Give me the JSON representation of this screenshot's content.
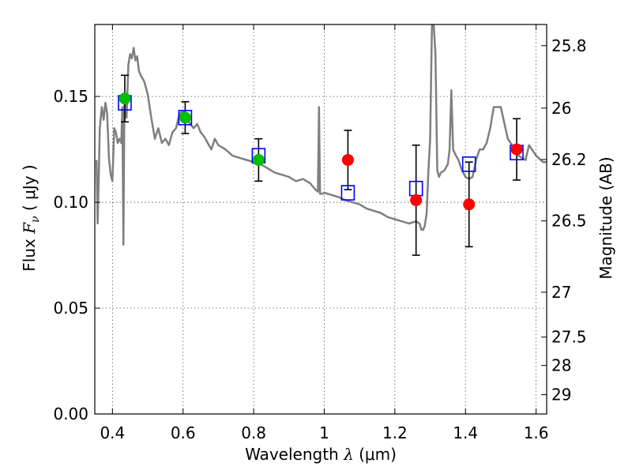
{
  "chart_data": {
    "type": "scatter",
    "xlabel": {
      "prefix": "Wavelength  ",
      "symbol": "λ",
      "unit": " (μm)"
    },
    "ylabel": {
      "prefix": "Flux  ",
      "symbol": "F",
      "subscript": "ν",
      "unit": "  ( μJy )"
    },
    "y2label": "Magnitude (AB)",
    "xlim": [
      0.35,
      1.63
    ],
    "ylim": [
      0.0,
      0.184
    ],
    "grid": true,
    "x_ticks": [
      0.4,
      0.6,
      0.8,
      1.0,
      1.2,
      1.4,
      1.6
    ],
    "x_tick_labels": [
      "0.4",
      "0.6",
      "0.8",
      "1",
      "1.2",
      "1.4",
      "1.6"
    ],
    "y_ticks": [
      0.0,
      0.05,
      0.1,
      0.15
    ],
    "y_tick_labels": [
      "0.00",
      "0.05",
      "0.10",
      "0.15"
    ],
    "y2_ticks": [
      {
        "label": "25.8",
        "flux": 0.174
      },
      {
        "label": "26",
        "flux": 0.1445
      },
      {
        "label": "26.2",
        "flux": 0.1202
      },
      {
        "label": "26.5",
        "flux": 0.0912
      },
      {
        "label": "27",
        "flux": 0.0575
      },
      {
        "label": "27.5",
        "flux": 0.0363
      },
      {
        "label": "28",
        "flux": 0.0229
      },
      {
        "label": "29",
        "flux": 0.0091
      }
    ],
    "model_color": "#7f7f7f",
    "model_spectrum": {
      "x": [
        0.355,
        0.358,
        0.361,
        0.364,
        0.367,
        0.37,
        0.375,
        0.38,
        0.385,
        0.39,
        0.395,
        0.4,
        0.405,
        0.41,
        0.415,
        0.42,
        0.425,
        0.428,
        0.431,
        0.434,
        0.437,
        0.44,
        0.445,
        0.45,
        0.455,
        0.46,
        0.465,
        0.47,
        0.475,
        0.48,
        0.49,
        0.5,
        0.51,
        0.52,
        0.53,
        0.54,
        0.55,
        0.56,
        0.57,
        0.58,
        0.59,
        0.6,
        0.61,
        0.62,
        0.63,
        0.64,
        0.65,
        0.66,
        0.67,
        0.68,
        0.69,
        0.7,
        0.72,
        0.74,
        0.76,
        0.78,
        0.8,
        0.82,
        0.84,
        0.86,
        0.88,
        0.9,
        0.92,
        0.94,
        0.96,
        0.975,
        0.982,
        0.985,
        0.988,
        0.995,
        1.0,
        1.02,
        1.04,
        1.06,
        1.08,
        1.1,
        1.12,
        1.14,
        1.16,
        1.18,
        1.2,
        1.22,
        1.24,
        1.26,
        1.27,
        1.275,
        1.28,
        1.285,
        1.29,
        1.295,
        1.3,
        1.305,
        1.31,
        1.315,
        1.32,
        1.325,
        1.33,
        1.34,
        1.35,
        1.355,
        1.36,
        1.365,
        1.37,
        1.38,
        1.39,
        1.4,
        1.41,
        1.42,
        1.43,
        1.44,
        1.45,
        1.46,
        1.47,
        1.48,
        1.5,
        1.52,
        1.54,
        1.55,
        1.56,
        1.57,
        1.58,
        1.6,
        1.62,
        1.63
      ],
      "y": [
        0.12,
        0.09,
        0.11,
        0.135,
        0.14,
        0.145,
        0.139,
        0.147,
        0.142,
        0.121,
        0.113,
        0.11,
        0.135,
        0.133,
        0.128,
        0.13,
        0.128,
        0.145,
        0.08,
        0.147,
        0.145,
        0.14,
        0.165,
        0.17,
        0.168,
        0.173,
        0.167,
        0.169,
        0.162,
        0.16,
        0.157,
        0.151,
        0.14,
        0.13,
        0.135,
        0.128,
        0.13,
        0.127,
        0.133,
        0.135,
        0.142,
        0.143,
        0.14,
        0.137,
        0.135,
        0.137,
        0.133,
        0.131,
        0.128,
        0.125,
        0.13,
        0.127,
        0.125,
        0.122,
        0.121,
        0.12,
        0.119,
        0.118,
        0.116,
        0.114,
        0.113,
        0.112,
        0.11,
        0.111,
        0.109,
        0.106,
        0.105,
        0.145,
        0.104,
        0.104,
        0.1045,
        0.1035,
        0.1025,
        0.101,
        0.1,
        0.099,
        0.097,
        0.096,
        0.095,
        0.093,
        0.092,
        0.091,
        0.09,
        0.091,
        0.09,
        0.087,
        0.087,
        0.089,
        0.095,
        0.115,
        0.13,
        0.184,
        0.184,
        0.17,
        0.115,
        0.112,
        0.114,
        0.115,
        0.118,
        0.125,
        0.153,
        0.125,
        0.123,
        0.12,
        0.115,
        0.112,
        0.111,
        0.112,
        0.12,
        0.125,
        0.125,
        0.128,
        0.135,
        0.145,
        0.145,
        0.13,
        0.125,
        0.122,
        0.121,
        0.12,
        0.127,
        0.122,
        0.119,
        0.119
      ],
      "width": 2.5
    },
    "series": [
      {
        "kind": "observed",
        "color": "#00bf00",
        "marker": "circle",
        "points": [
          {
            "x": 0.435,
            "y": 0.149,
            "err": 0.011
          },
          {
            "x": 0.606,
            "y": 0.14,
            "err": 0.0075
          },
          {
            "x": 0.814,
            "y": 0.12,
            "err": 0.01
          }
        ]
      },
      {
        "kind": "observed",
        "color": "#ff0000",
        "marker": "circle",
        "points": [
          {
            "x": 1.067,
            "y": 0.12,
            "err": 0.014
          },
          {
            "x": 1.26,
            "y": 0.101,
            "err": 0.026
          },
          {
            "x": 1.41,
            "y": 0.099,
            "err": 0.02
          },
          {
            "x": 1.545,
            "y": 0.125,
            "err": 0.0145
          }
        ]
      },
      {
        "kind": "model-synthetic",
        "color": "#0000ff",
        "marker": "square-open",
        "points": [
          {
            "x": 0.435,
            "y": 0.147
          },
          {
            "x": 0.606,
            "y": 0.14
          },
          {
            "x": 0.814,
            "y": 0.122
          },
          {
            "x": 1.067,
            "y": 0.1045
          },
          {
            "x": 1.26,
            "y": 0.1065
          },
          {
            "x": 1.41,
            "y": 0.118
          },
          {
            "x": 1.545,
            "y": 0.1235
          }
        ]
      }
    ]
  }
}
